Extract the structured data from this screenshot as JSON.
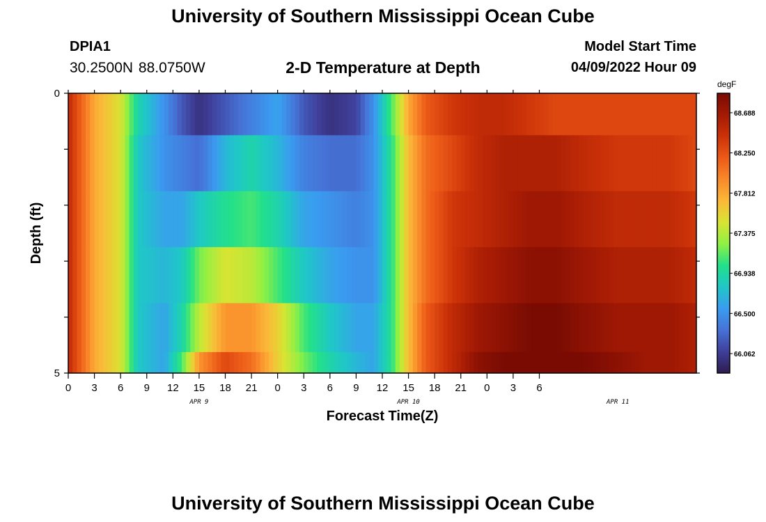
{
  "header": {
    "title": "University of Southern Mississippi Ocean Cube",
    "station": "DPIA1",
    "coords": "30.2500N  88.0750W",
    "subtitle": "2-D Temperature at Depth",
    "model_label": "Model Start Time",
    "model_time": "04/09/2022 Hour 09"
  },
  "footer": {
    "title": "University of Southern Mississippi Ocean Cube"
  },
  "chart_data": {
    "type": "heatmap",
    "title": "2-D Temperature at Depth",
    "xlabel": "Forecast Time(Z)",
    "ylabel": "Depth (ft)",
    "x_ticks": [
      "0",
      "3",
      "6",
      "9",
      "12",
      "15",
      "18",
      "21",
      "0",
      "3",
      "6",
      "9",
      "12",
      "15",
      "18",
      "21",
      "0",
      "3",
      "6"
    ],
    "date_labels": [
      {
        "label": "APR 9",
        "hour": 15
      },
      {
        "label": "APR 10",
        "hour": 39
      },
      {
        "label": "APR 11",
        "hour": 63
      }
    ],
    "y_ticks": [
      "0",
      "5"
    ],
    "ylim": [
      0,
      5
    ],
    "xlim_hours": [
      0,
      72
    ],
    "colorbar": {
      "unit": "degF",
      "labels": [
        "68.688",
        "68.250",
        "67.812",
        "67.375",
        "66.938",
        "66.500",
        "66.062"
      ],
      "min": 65.85,
      "max": 68.9,
      "colors": [
        "#2d1c4e",
        "#3f3f9a",
        "#4672d6",
        "#3a9cf0",
        "#1fc7c7",
        "#22e08a",
        "#8ff044",
        "#d8e432",
        "#fbb838",
        "#f9892a",
        "#ec5a17",
        "#cc3208",
        "#a41a04",
        "#7a0b03"
      ]
    },
    "depth_layers": [
      0.25,
      1.25,
      2.25,
      3.25,
      4.25,
      5.0
    ],
    "series": [
      {
        "depth": 0.25,
        "hours": [
          0,
          3,
          6,
          8,
          11,
          13,
          15,
          18,
          21,
          24,
          27,
          30,
          33,
          35,
          37,
          39,
          41,
          44,
          47,
          50,
          53,
          56,
          59,
          63,
          66,
          69,
          72
        ],
        "values": [
          68.5,
          67.8,
          67.5,
          66.9,
          66.5,
          66.2,
          66.0,
          66.2,
          66.4,
          66.6,
          66.2,
          66.0,
          66.1,
          66.5,
          67.1,
          67.8,
          68.2,
          68.4,
          68.5,
          68.5,
          68.4,
          68.3,
          68.3,
          68.3,
          68.3,
          68.3,
          68.3
        ]
      },
      {
        "depth": 1.25,
        "hours": [
          0,
          3,
          6,
          8,
          11,
          13,
          15,
          18,
          21,
          24,
          27,
          30,
          33,
          35,
          37,
          39,
          41,
          44,
          47,
          50,
          53,
          56,
          59,
          63,
          66,
          69,
          72
        ],
        "values": [
          68.5,
          67.8,
          67.5,
          66.8,
          66.5,
          66.4,
          66.3,
          66.7,
          66.9,
          66.7,
          66.4,
          66.3,
          66.3,
          66.5,
          67.0,
          67.7,
          68.1,
          68.3,
          68.5,
          68.6,
          68.6,
          68.6,
          68.5,
          68.4,
          68.4,
          68.4,
          68.3
        ]
      },
      {
        "depth": 2.25,
        "hours": [
          0,
          3,
          6,
          8,
          11,
          13,
          15,
          18,
          21,
          24,
          27,
          30,
          33,
          35,
          37,
          39,
          41,
          44,
          47,
          50,
          53,
          56,
          59,
          63,
          66,
          69,
          72
        ],
        "values": [
          68.5,
          67.8,
          67.5,
          66.8,
          66.6,
          66.6,
          66.8,
          67.0,
          67.1,
          66.9,
          66.6,
          66.5,
          66.4,
          66.5,
          67.0,
          67.7,
          68.1,
          68.4,
          68.5,
          68.6,
          68.7,
          68.7,
          68.6,
          68.5,
          68.5,
          68.5,
          68.4
        ]
      },
      {
        "depth": 3.25,
        "hours": [
          0,
          3,
          6,
          8,
          11,
          13,
          15,
          18,
          21,
          24,
          27,
          30,
          33,
          35,
          37,
          39,
          41,
          44,
          47,
          50,
          53,
          56,
          59,
          63,
          66,
          69,
          72
        ],
        "values": [
          68.5,
          67.8,
          67.5,
          66.8,
          66.7,
          66.8,
          67.2,
          67.5,
          67.4,
          67.1,
          66.8,
          66.6,
          66.5,
          66.5,
          67.0,
          67.7,
          68.1,
          68.4,
          68.6,
          68.7,
          68.8,
          68.8,
          68.7,
          68.6,
          68.6,
          68.6,
          68.5
        ]
      },
      {
        "depth": 4.25,
        "hours": [
          0,
          3,
          6,
          8,
          11,
          13,
          15,
          18,
          21,
          24,
          27,
          30,
          33,
          35,
          37,
          39,
          41,
          44,
          47,
          50,
          53,
          56,
          59,
          63,
          66,
          69,
          72
        ],
        "values": [
          68.5,
          67.8,
          67.5,
          66.8,
          66.6,
          66.9,
          67.4,
          67.9,
          67.9,
          67.6,
          67.1,
          66.8,
          66.6,
          66.6,
          67.0,
          67.7,
          68.2,
          68.5,
          68.7,
          68.8,
          68.9,
          68.9,
          68.8,
          68.7,
          68.7,
          68.7,
          68.6
        ]
      },
      {
        "depth": 5.0,
        "hours": [
          0,
          3,
          6,
          8,
          11,
          13,
          15,
          18,
          21,
          24,
          27,
          30,
          33,
          35,
          37,
          39,
          41,
          44,
          47,
          50,
          53,
          56,
          59,
          63,
          66,
          69,
          72
        ],
        "values": [
          68.5,
          67.8,
          67.5,
          66.8,
          66.6,
          67.1,
          67.9,
          68.3,
          68.1,
          67.6,
          67.2,
          66.9,
          66.7,
          66.6,
          67.0,
          67.7,
          68.2,
          68.5,
          68.8,
          68.9,
          68.9,
          68.9,
          68.9,
          68.8,
          68.7,
          68.7,
          68.6
        ]
      }
    ]
  }
}
